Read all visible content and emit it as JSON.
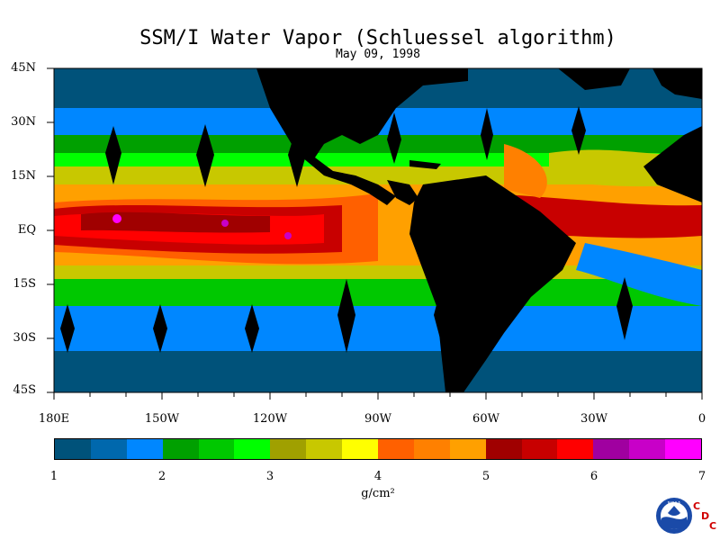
{
  "title": "SSM/I Water Vapor (Schluessel algorithm)",
  "subtitle": "May 09, 1998",
  "lat_labels": [
    "45N",
    "30N",
    "15N",
    "EQ",
    "15S",
    "30S",
    "45S"
  ],
  "lon_labels": [
    "180E",
    "150W",
    "120W",
    "90W",
    "60W",
    "30W",
    "0"
  ],
  "colorbar": {
    "colors": [
      "#00527a",
      "#0068ad",
      "#0087ff",
      "#00a000",
      "#00c800",
      "#00ff00",
      "#a0a000",
      "#c8c800",
      "#ffff00",
      "#ff6000",
      "#ff8000",
      "#ffa000",
      "#a00000",
      "#c80000",
      "#ff0000",
      "#a000a0",
      "#c800c8",
      "#ff00ff"
    ],
    "ticks": [
      "1",
      "2",
      "3",
      "4",
      "5",
      "6",
      "7"
    ],
    "unit": "g/cm²"
  },
  "logo": {
    "text": "NOAA",
    "letters": [
      "C",
      "D",
      "C"
    ]
  },
  "map_colors": {
    "land": "#000000",
    "ocean_low": "#00527a",
    "ocean_mid": "#0087ff"
  }
}
